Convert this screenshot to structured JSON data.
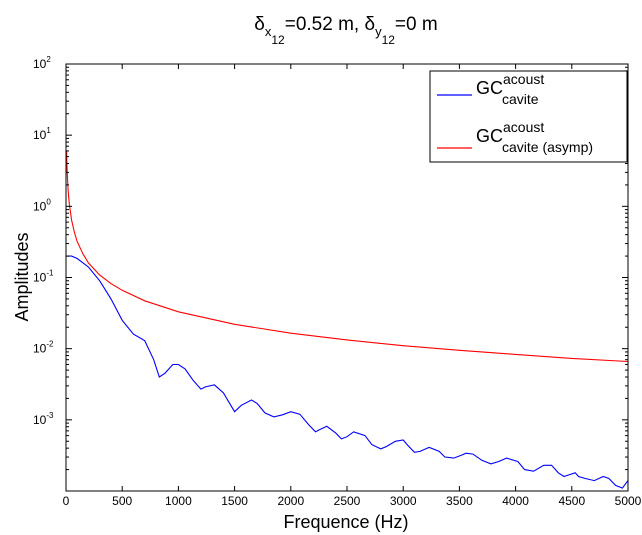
{
  "chart_data": {
    "type": "line",
    "title": {
      "d1": "δ",
      "d1_sub": "x",
      "d1_subsub": "12",
      "d1_value": "=0.52 m, ",
      "d2": "δ",
      "d2_sub": "y",
      "d2_subsub": "12",
      "d2_value": "=0 m"
    },
    "xlabel": "Frequence (Hz)",
    "ylabel": "Amplitudes",
    "xlim": [
      0,
      5000
    ],
    "ylim": [
      0.0001,
      100
    ],
    "yscale": "log",
    "grid": false,
    "legend_position": "top-right",
    "x_ticks": [
      0,
      500,
      1000,
      1500,
      2000,
      2500,
      3000,
      3500,
      4000,
      4500,
      5000
    ],
    "x_tick_labels": [
      "0",
      "500",
      "1000",
      "1500",
      "2000",
      "2500",
      "3000",
      "3500",
      "4000",
      "4500",
      "5000"
    ],
    "y_ticks": [
      {
        "value": 100,
        "base": "10",
        "exp": "2"
      },
      {
        "value": 10,
        "base": "10",
        "exp": "1"
      },
      {
        "value": 1,
        "base": "10",
        "exp": "0"
      },
      {
        "value": 0.1,
        "base": "10",
        "exp": "-1"
      },
      {
        "value": 0.01,
        "base": "10",
        "exp": "-2"
      },
      {
        "value": 0.001,
        "base": "10",
        "exp": "-3"
      }
    ],
    "series": [
      {
        "legend_main": "GC",
        "legend_sup": "acoust",
        "legend_sub": "cavite",
        "color": "#0000ff",
        "x": [
          0,
          50,
          100,
          200,
          300,
          400,
          500,
          600,
          700,
          780,
          830,
          880,
          950,
          1000,
          1060,
          1130,
          1200,
          1240,
          1320,
          1400,
          1500,
          1560,
          1650,
          1700,
          1770,
          1850,
          1930,
          2000,
          2080,
          2160,
          2220,
          2250,
          2320,
          2400,
          2450,
          2500,
          2560,
          2660,
          2720,
          2800,
          2850,
          2930,
          3000,
          3040,
          3100,
          3150,
          3230,
          3320,
          3370,
          3450,
          3520,
          3560,
          3620,
          3700,
          3780,
          3850,
          3920,
          4020,
          4080,
          4160,
          4250,
          4320,
          4380,
          4430,
          4480,
          4530,
          4560,
          4620,
          4700,
          4780,
          4830,
          4890,
          4950,
          5000
        ],
        "y": [
          0.2,
          0.2,
          0.185,
          0.14,
          0.09,
          0.05,
          0.025,
          0.016,
          0.013,
          0.007,
          0.004,
          0.0045,
          0.006,
          0.006,
          0.0052,
          0.0036,
          0.0027,
          0.0029,
          0.0031,
          0.0024,
          0.0013,
          0.0016,
          0.0019,
          0.0017,
          0.00125,
          0.0011,
          0.00118,
          0.0013,
          0.0012,
          0.00085,
          0.00068,
          0.00072,
          0.00081,
          0.00065,
          0.00054,
          0.00058,
          0.00068,
          0.0006,
          0.00045,
          0.00039,
          0.00042,
          0.0005,
          0.00052,
          0.00044,
          0.00035,
          0.00036,
          0.00041,
          0.00036,
          0.0003,
          0.00029,
          0.00032,
          0.00034,
          0.00033,
          0.00027,
          0.00024,
          0.00026,
          0.00029,
          0.00026,
          0.0002,
          0.00019,
          0.00023,
          0.00023,
          0.00018,
          0.00016,
          0.00017,
          0.00018,
          0.00016,
          0.00015,
          0.00014,
          0.00016,
          0.00015,
          0.00012,
          0.00011,
          0.00014
        ]
      },
      {
        "legend_main": "GC",
        "legend_sup": "acoust",
        "legend_sub": "cavite (asymp)",
        "color": "#ff0000",
        "x": [
          5,
          10,
          20,
          30,
          50,
          75,
          100,
          150,
          200,
          300,
          400,
          500,
          700,
          1000,
          1500,
          2000,
          2500,
          3000,
          3500,
          4000,
          4500,
          5000
        ],
        "y": [
          6.0,
          3.2,
          1.6,
          1.05,
          0.64,
          0.43,
          0.32,
          0.215,
          0.16,
          0.108,
          0.082,
          0.066,
          0.047,
          0.033,
          0.022,
          0.0165,
          0.0133,
          0.011,
          0.0095,
          0.0083,
          0.0073,
          0.0066
        ]
      }
    ]
  }
}
